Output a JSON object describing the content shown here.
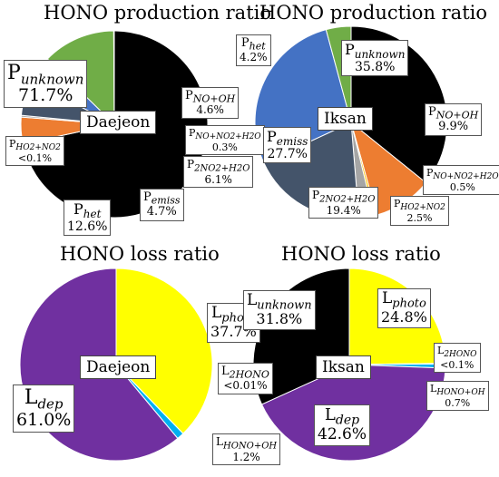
{
  "chart_data": [
    {
      "type": "pie",
      "title": "HONO production ratio",
      "site": "Daejeon",
      "slices": [
        {
          "name": "P_unknown",
          "main": "P",
          "sub": "unknown",
          "value": 71.7,
          "display": "71.7%",
          "color": "#000000"
        },
        {
          "name": "P_NO+OH",
          "main": "P",
          "sub": "NO+OH",
          "value": 4.6,
          "display": "4.6%",
          "color": "#ed7d31"
        },
        {
          "name": "P_NO+NO2+H2O",
          "main": "P",
          "sub": "NO+NO2+H2O",
          "value": 0.3,
          "display": "0.3%",
          "color": "#a5a5a5"
        },
        {
          "name": "P_2NO2+H2O",
          "main": "P",
          "sub": "2NO2+H2O",
          "value": 6.1,
          "display": "6.1%",
          "color": "#44546a"
        },
        {
          "name": "P_emiss",
          "main": "P",
          "sub": "emiss",
          "value": 4.7,
          "display": "4.7%",
          "color": "#4472c4"
        },
        {
          "name": "P_het",
          "main": "P",
          "sub": "het",
          "value": 12.6,
          "display": "12.6%",
          "color": "#70ad47"
        },
        {
          "name": "P_HO2+NO2",
          "main": "P",
          "sub": "HO2+NO2",
          "value": 0.1,
          "display": "<0.1%",
          "color": "#ffc000"
        }
      ]
    },
    {
      "type": "pie",
      "title": "HONO production ratio",
      "site": "Iksan",
      "slices": [
        {
          "name": "P_unknown",
          "main": "P",
          "sub": "unknown",
          "value": 35.8,
          "display": "35.8%",
          "color": "#000000"
        },
        {
          "name": "P_NO+OH",
          "main": "P",
          "sub": "NO+OH",
          "value": 9.9,
          "display": "9.9%",
          "color": "#ed7d31"
        },
        {
          "name": "P_NO+NO2+H2O",
          "main": "P",
          "sub": "NO+NO2+H2O",
          "value": 0.5,
          "display": "0.5%",
          "color": "#ffc000"
        },
        {
          "name": "P_HO2+NO2",
          "main": "P",
          "sub": "HO2+NO2",
          "value": 2.5,
          "display": "2.5%",
          "color": "#a5a5a5"
        },
        {
          "name": "P_2NO2+H2O",
          "main": "P",
          "sub": "2NO2+H2O",
          "value": 19.4,
          "display": "19.4%",
          "color": "#44546a"
        },
        {
          "name": "P_emiss",
          "main": "P",
          "sub": "emiss",
          "value": 27.7,
          "display": "27.7%",
          "color": "#4472c4"
        },
        {
          "name": "P_het",
          "main": "P",
          "sub": "het",
          "value": 4.2,
          "display": "4.2%",
          "color": "#70ad47"
        }
      ]
    },
    {
      "type": "pie",
      "title": "HONO loss ratio",
      "site": "Daejeon",
      "slices": [
        {
          "name": "L_photo",
          "main": "L",
          "sub": "photo",
          "value": 37.7,
          "display": "37.7%",
          "color": "#ffff00"
        },
        {
          "name": "L_2HONO",
          "main": "L",
          "sub": "2HONO",
          "value": 0.01,
          "display": "<0.01%",
          "color": "#70ad47"
        },
        {
          "name": "L_HONO+OH",
          "main": "L",
          "sub": "HONO+OH",
          "value": 1.2,
          "display": "1.2%",
          "color": "#00b0f0"
        },
        {
          "name": "L_dep",
          "main": "L",
          "sub": "dep",
          "value": 61.0,
          "display": "61.0%",
          "color": "#7030a0"
        }
      ]
    },
    {
      "type": "pie",
      "title": "HONO loss ratio",
      "site": "Iksan",
      "slices": [
        {
          "name": "L_photo",
          "main": "L",
          "sub": "photo",
          "value": 24.8,
          "display": "24.8%",
          "color": "#ffff00"
        },
        {
          "name": "L_2HONO",
          "main": "L",
          "sub": "2HONO",
          "value": 0.1,
          "display": "<0.1%",
          "color": "#70ad47"
        },
        {
          "name": "L_HONO+OH",
          "main": "L",
          "sub": "HONO+OH",
          "value": 0.7,
          "display": "0.7%",
          "color": "#00b0f0"
        },
        {
          "name": "L_dep",
          "main": "L",
          "sub": "dep",
          "value": 42.6,
          "display": "42.6%",
          "color": "#7030a0"
        },
        {
          "name": "L_unknown",
          "main": "L",
          "sub": "unknown",
          "value": 31.8,
          "display": "31.8%",
          "color": "#000000"
        }
      ]
    }
  ]
}
